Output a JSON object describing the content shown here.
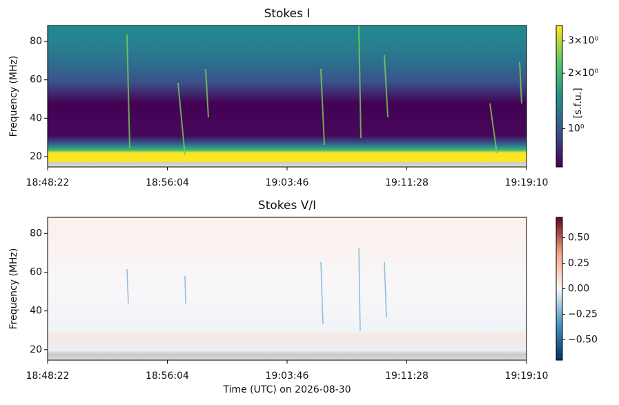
{
  "chart_data": [
    {
      "type": "spectrogram",
      "title": "Stokes I",
      "ylabel": "Frequency (MHz)",
      "xticks": [
        "18:48:22",
        "18:56:04",
        "19:03:46",
        "19:11:28",
        "19:19:10"
      ],
      "ylim": [
        14.6,
        88.3
      ],
      "yticks": [
        20,
        40,
        60,
        80
      ],
      "colormap": "viridis",
      "colorbar_label": "[s.f.u.]",
      "colorbar_scale": "log",
      "clim": [
        0.62,
        3.63
      ],
      "cticks": [
        {
          "value": 3,
          "label": "3×10⁰"
        },
        {
          "value": 2,
          "label": "2×10⁰"
        },
        {
          "value": 1,
          "label": "10⁰"
        }
      ]
    },
    {
      "type": "spectrogram",
      "title": "Stokes V/I",
      "ylabel": "Frequency (MHz)",
      "xlabel": "Time (UTC) on 2026-08-30",
      "xticks": [
        "18:48:22",
        "18:56:04",
        "19:03:46",
        "19:11:28",
        "19:19:10"
      ],
      "ylim": [
        14.6,
        88.3
      ],
      "yticks": [
        20,
        40,
        60,
        80
      ],
      "colormap": "RdBu_r",
      "colorbar_scale": "linear",
      "clim": [
        -0.7,
        0.7
      ],
      "cticks": [
        {
          "value": 0.5,
          "label": "0.50"
        },
        {
          "value": 0.25,
          "label": "0.25"
        },
        {
          "value": 0,
          "label": "0.00"
        },
        {
          "value": -0.25,
          "label": "−0.25"
        },
        {
          "value": -0.5,
          "label": "−0.50"
        }
      ]
    }
  ]
}
